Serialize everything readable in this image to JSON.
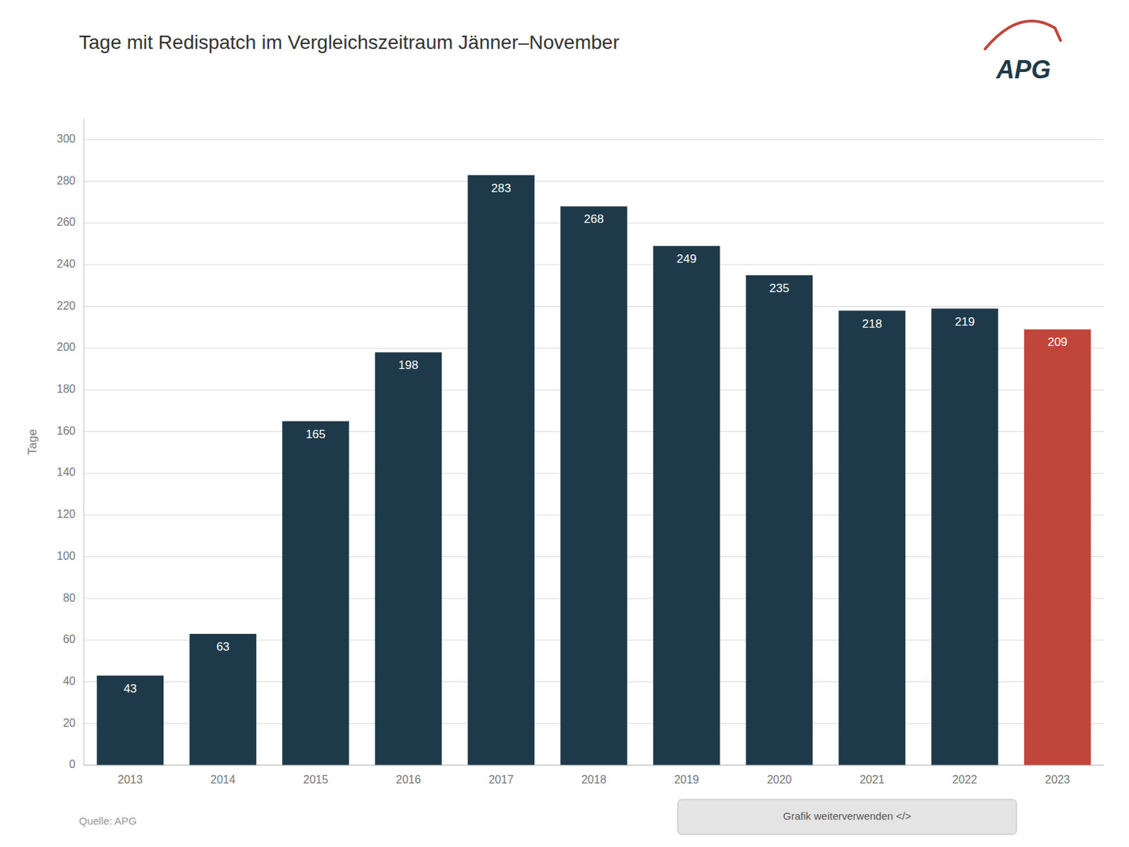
{
  "chart_data": {
    "type": "bar",
    "title": "Tage mit Redispatch im Vergleichszeitraum Jänner–November",
    "ylabel": "Tage",
    "categories": [
      "2013",
      "2014",
      "2015",
      "2016",
      "2017",
      "2018",
      "2019",
      "2020",
      "2021",
      "2022",
      "2023"
    ],
    "values": [
      43,
      63,
      165,
      198,
      283,
      268,
      249,
      235,
      218,
      219,
      209
    ],
    "colors": [
      "#1e3a4a",
      "#1e3a4a",
      "#1e3a4a",
      "#1e3a4a",
      "#1e3a4a",
      "#1e3a4a",
      "#1e3a4a",
      "#1e3a4a",
      "#1e3a4a",
      "#1e3a4a",
      "#c0453a"
    ],
    "ylim": [
      0,
      310
    ],
    "yticks": [
      0,
      20,
      40,
      60,
      80,
      100,
      120,
      140,
      160,
      180,
      200,
      220,
      240,
      260,
      280,
      300
    ],
    "grid": true,
    "data_labels": true,
    "annotations": [
      "Quelle: APG",
      "Grafik weiterverwenden </>",
      "APG"
    ]
  }
}
